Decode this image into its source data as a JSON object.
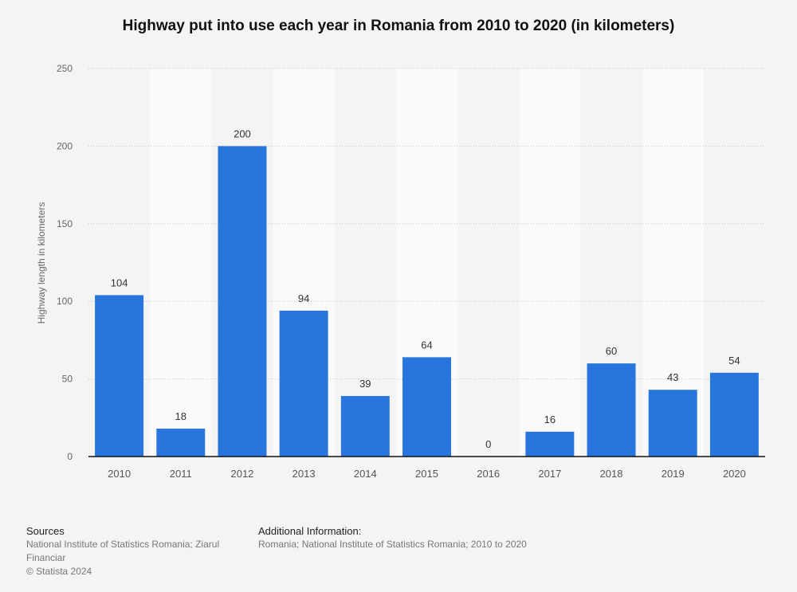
{
  "chart_data": {
    "type": "bar",
    "title": "Highway put into use each year in Romania from 2010 to 2020 (in kilometers)",
    "xlabel": "",
    "ylabel": "Highway length in kilometers",
    "categories": [
      "2010",
      "2011",
      "2012",
      "2013",
      "2014",
      "2015",
      "2016",
      "2017",
      "2018",
      "2019",
      "2020"
    ],
    "values": [
      104,
      18,
      200,
      94,
      39,
      64,
      0,
      16,
      60,
      43,
      54
    ],
    "ylim": [
      0,
      250
    ],
    "yticks": [
      0,
      50,
      100,
      150,
      200,
      250
    ],
    "grid": true,
    "bar_color": "#2876dd",
    "data_labels": true
  },
  "footer": {
    "sources_heading": "Sources",
    "sources_text": "National Institute of Statistics Romania; Ziarul Financiar",
    "copyright": "© Statista 2024",
    "additional_heading": "Additional Information:",
    "additional_text": "Romania; National Institute of Statistics Romania; 2010 to 2020"
  }
}
